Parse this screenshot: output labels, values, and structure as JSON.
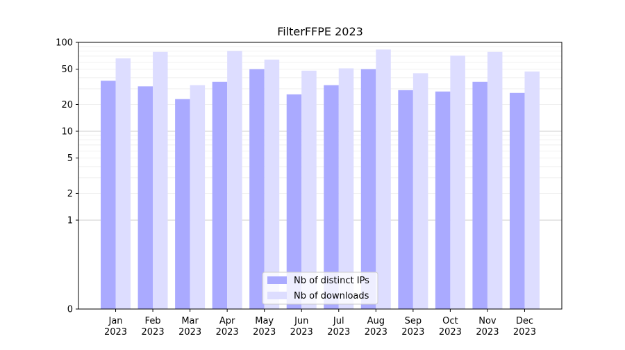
{
  "chart_data": {
    "type": "bar",
    "title": "FilterFFPE 2023",
    "xlabel": "",
    "ylabel": "",
    "yscale": "symlog",
    "ylim": [
      0,
      100
    ],
    "yticks": [
      0,
      1,
      2,
      5,
      10,
      20,
      50,
      100
    ],
    "ytick_labels": [
      "0",
      "1",
      "2",
      "5",
      "10",
      "20",
      "50",
      "100"
    ],
    "grid": true,
    "legend_position": "bottom-center",
    "categories": [
      "Jan",
      "Feb",
      "Mar",
      "Apr",
      "May",
      "Jun",
      "Jul",
      "Aug",
      "Sep",
      "Oct",
      "Nov",
      "Dec"
    ],
    "category_sublabel": "2023",
    "series": [
      {
        "name": "Nb of distinct IPs",
        "color": "#aaaaff",
        "values": [
          37,
          32,
          23,
          36,
          50,
          26,
          33,
          50,
          29,
          28,
          36,
          27
        ]
      },
      {
        "name": "Nb of downloads",
        "color": "#ddddff",
        "values": [
          66,
          78,
          33,
          80,
          64,
          48,
          51,
          83,
          45,
          71,
          78,
          47
        ]
      }
    ]
  }
}
